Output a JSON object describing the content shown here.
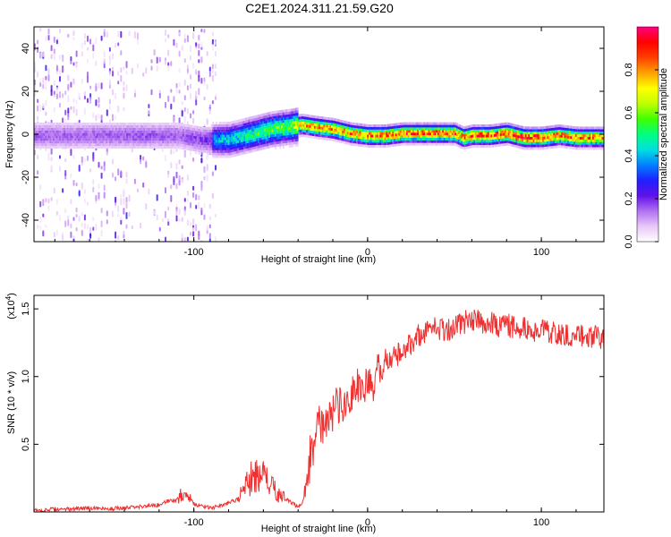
{
  "figure": {
    "title": "C2E1.2024.311.21.59.G20"
  },
  "chart_data": [
    {
      "type": "heatmap",
      "name": "spectrogram",
      "title": "C2E1.2024.311.21.59.G20",
      "xlabel": "Height of straight line (km)",
      "ylabel": "Frequency (Hz)",
      "xlim": [
        -192,
        136
      ],
      "ylim": [
        -50,
        50
      ],
      "x_ticks": [
        -100,
        0,
        100
      ],
      "x_tick_labels": [
        "-100",
        "0",
        "100"
      ],
      "y_ticks": [
        -40,
        -20,
        0,
        20,
        40
      ],
      "y_tick_labels": [
        "-40",
        "-20",
        "0",
        "20",
        "40"
      ],
      "colorbar": {
        "label": "Normalized spectral amplitude",
        "range": [
          0,
          1
        ],
        "ticks": [
          0.0,
          0.2,
          0.4,
          0.6,
          0.8
        ],
        "tick_labels": [
          "0.0",
          "0.2",
          "0.4",
          "0.6",
          "0.8"
        ],
        "colormap": [
          "#ffffff",
          "#e8c8f8",
          "#b070f0",
          "#6010e8",
          "#2020ff",
          "#0080ff",
          "#00e0e0",
          "#00ff80",
          "#40ff00",
          "#c0ff00",
          "#ffff00",
          "#ffa000",
          "#ff4000",
          "#ff0000",
          "#ff0080"
        ]
      },
      "ridge": {
        "x": [
          -192,
          -170,
          -150,
          -130,
          -110,
          -95,
          -80,
          -65,
          -55,
          -45,
          -38,
          -30,
          -20,
          -10,
          0,
          10,
          20,
          30,
          40,
          50,
          55,
          60,
          70,
          80,
          90,
          100,
          110,
          120,
          136
        ],
        "freq": [
          0,
          0,
          0,
          0,
          0,
          -2,
          -2,
          1,
          3,
          4,
          5,
          4,
          3,
          1,
          0,
          0,
          1,
          1,
          1,
          1,
          -1,
          0,
          0,
          1,
          -1,
          -1,
          0,
          -1,
          -1
        ],
        "amplitude": [
          0.3,
          0.3,
          0.3,
          0.32,
          0.3,
          0.35,
          0.45,
          0.55,
          0.6,
          0.6,
          0.8,
          0.85,
          0.85,
          0.88,
          0.9,
          0.92,
          0.9,
          0.9,
          0.92,
          0.9,
          0.9,
          0.92,
          0.95,
          0.95,
          1.0,
          0.95,
          0.9,
          0.9,
          0.85
        ]
      }
    },
    {
      "type": "line",
      "name": "snr",
      "xlabel": "Height of straight line (km)",
      "ylabel": "SNR (10 * v/v)",
      "yscale_label": "(x10",
      "yscale_exp": "4",
      "yscale_close": ")",
      "color": "#ee3030",
      "xlim": [
        -192,
        136
      ],
      "ylim": [
        0,
        1.6
      ],
      "x_ticks": [
        -100,
        0,
        100
      ],
      "x_tick_labels": [
        "-100",
        "0",
        "100"
      ],
      "y_ticks": [
        0.5,
        1.0,
        1.5
      ],
      "y_tick_labels": [
        "0.5",
        "1.0",
        "1.5"
      ],
      "series": [
        {
          "name": "SNR",
          "x": [
            -192,
            -180,
            -170,
            -160,
            -150,
            -140,
            -130,
            -125,
            -120,
            -115,
            -110,
            -105,
            -102,
            -100,
            -95,
            -90,
            -85,
            -80,
            -75,
            -72,
            -70,
            -67,
            -64,
            -62,
            -60,
            -57,
            -55,
            -52,
            -50,
            -48,
            -45,
            -42,
            -40,
            -37,
            -35,
            -33,
            -30,
            -28,
            -26,
            -24,
            -22,
            -20,
            -18,
            -15,
            -12,
            -10,
            -8,
            -5,
            -2,
            0,
            3,
            6,
            10,
            13,
            16,
            20,
            25,
            28,
            32,
            36,
            40,
            45,
            50,
            55,
            60,
            65,
            70,
            75,
            80,
            85,
            90,
            95,
            100,
            105,
            110,
            115,
            120,
            125,
            130,
            136
          ],
          "y": [
            0.01,
            0.02,
            0.02,
            0.03,
            0.02,
            0.03,
            0.04,
            0.05,
            0.05,
            0.08,
            0.09,
            0.14,
            0.1,
            0.06,
            0.04,
            0.03,
            0.04,
            0.07,
            0.09,
            0.15,
            0.18,
            0.25,
            0.28,
            0.22,
            0.26,
            0.2,
            0.18,
            0.15,
            0.12,
            0.1,
            0.08,
            0.05,
            0.04,
            0.08,
            0.25,
            0.4,
            0.55,
            0.7,
            0.6,
            0.65,
            0.75,
            0.72,
            0.8,
            0.78,
            0.86,
            0.82,
            0.9,
            0.95,
            0.88,
            0.95,
            0.9,
            1.05,
            1.12,
            1.1,
            1.15,
            1.2,
            1.25,
            1.3,
            1.32,
            1.36,
            1.36,
            1.34,
            1.38,
            1.4,
            1.42,
            1.4,
            1.4,
            1.38,
            1.38,
            1.36,
            1.35,
            1.34,
            1.33,
            1.32,
            1.32,
            1.32,
            1.3,
            1.31,
            1.3,
            1.29
          ]
        }
      ]
    }
  ]
}
